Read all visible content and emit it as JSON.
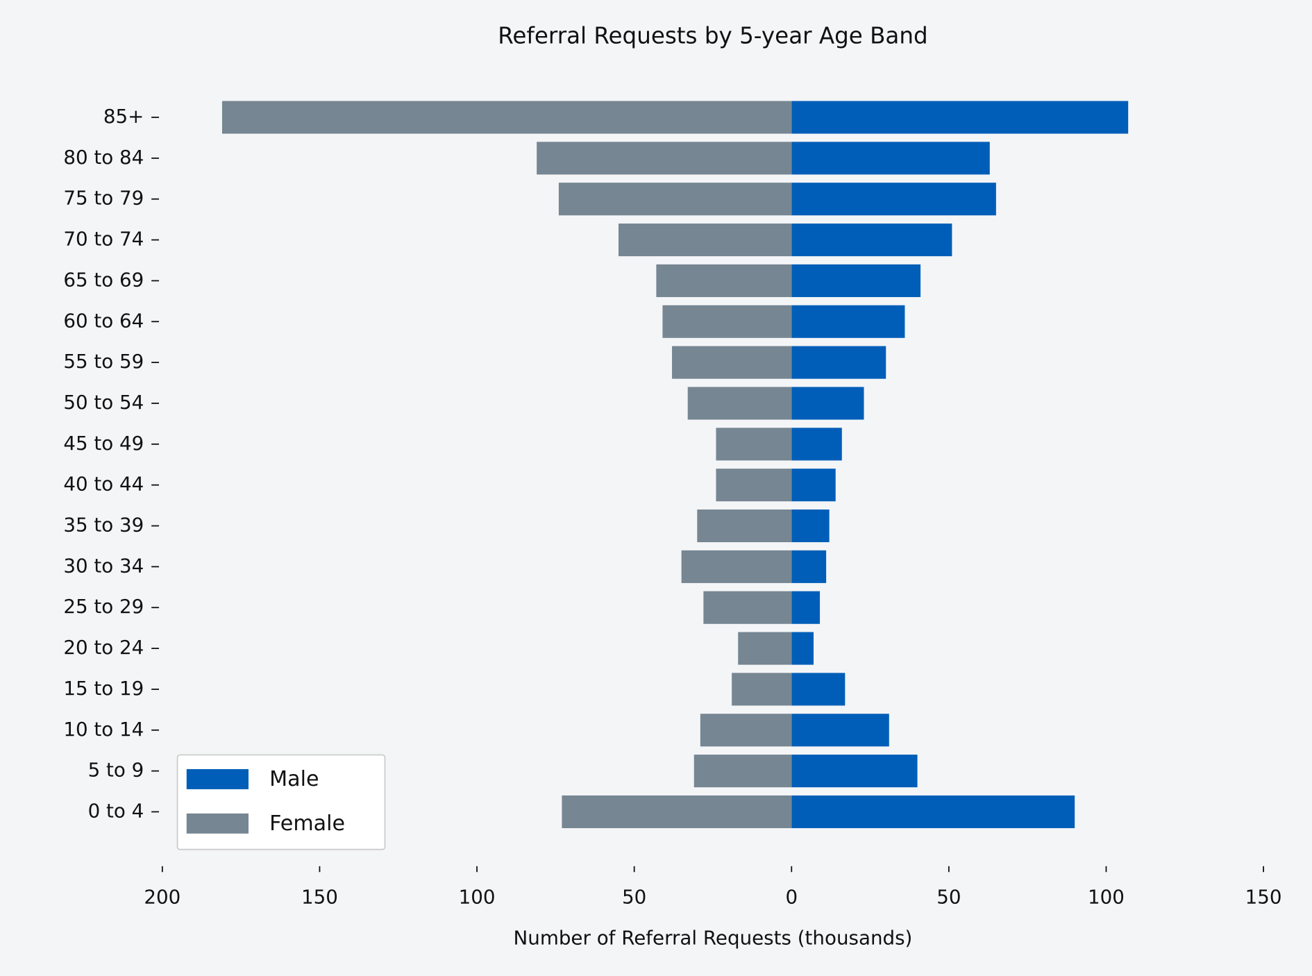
{
  "chart_data": {
    "type": "bar",
    "orientation": "horizontal",
    "stacked": true,
    "title": "Referral Requests by 5-year Age Band",
    "xlabel": "Number of Referral Requests (thousands)",
    "categories": [
      "0 to 4",
      "5 to 9",
      "10 to 14",
      "15 to 19",
      "20 to 24",
      "25 to 29",
      "30 to 34",
      "35 to 39",
      "40 to 44",
      "45 to 49",
      "50 to 54",
      "55 to 59",
      "60 to 64",
      "65 to 69",
      "70 to 74",
      "75 to 79",
      "80 to 84",
      "85+"
    ],
    "series": [
      {
        "name": "Male",
        "color": "#005eb8",
        "values": [
          90,
          40,
          31,
          17,
          7,
          9,
          11,
          12,
          14,
          16,
          23,
          30,
          36,
          41,
          51,
          65,
          63,
          107
        ]
      },
      {
        "name": "Female",
        "color": "#768692",
        "values": [
          -73,
          -31,
          -29,
          -19,
          -17,
          -28,
          -35,
          -30,
          -24,
          -24,
          -33,
          -38,
          -41,
          -43,
          -55,
          -74,
          -81,
          -181
        ]
      }
    ],
    "xlim": [
      -200,
      150
    ],
    "xticks": [
      {
        "value": -200,
        "label": "200"
      },
      {
        "value": -150,
        "label": "150"
      },
      {
        "value": -100,
        "label": "100"
      },
      {
        "value": -50,
        "label": "50"
      },
      0,
      50,
      100,
      150
    ],
    "legend": "lower left",
    "grid": false
  }
}
